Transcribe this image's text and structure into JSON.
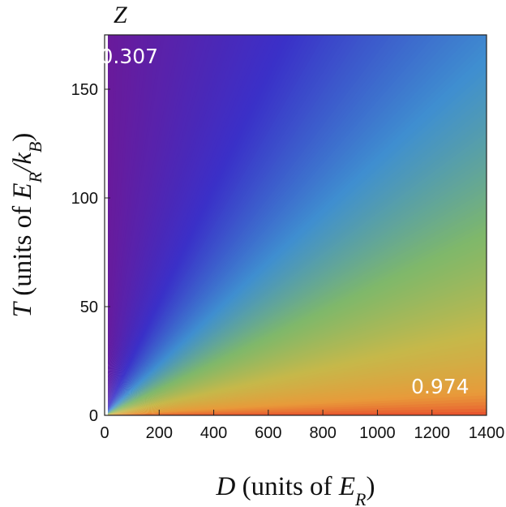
{
  "chart_data": {
    "type": "heatmap",
    "title": "Z",
    "xlabel": {
      "var": "D",
      "text": " (units of ",
      "unit_base": "E",
      "unit_sub": "R",
      "close": ")"
    },
    "ylabel": {
      "var": "T",
      "text": " (units of ",
      "unit_base": "E",
      "unit_sub": "R",
      "unit_slash": "/k",
      "unit_sub2": "B",
      "close": ")"
    },
    "xlim": [
      0,
      1400
    ],
    "ylim": [
      0,
      175
    ],
    "x_ticks": [
      0,
      200,
      400,
      600,
      800,
      1000,
      1200,
      1400
    ],
    "y_ticks": [
      0,
      50,
      100,
      150
    ],
    "grid": false,
    "legend": "none",
    "annotations": [
      {
        "text": "0.307",
        "at": [
          90,
          162
        ]
      },
      {
        "text": "0.974",
        "at": [
          1230,
          10
        ]
      }
    ],
    "z_range": [
      0.307,
      0.974
    ],
    "colormap": "rainbow",
    "colormap_stops": [
      "#6a1a9a",
      "#3a30c8",
      "#3f8fd0",
      "#7fb86a",
      "#c6b84a",
      "#e89a3a",
      "#e83a2a"
    ],
    "description_of_field": "Z is lowest at high T / low D and highest at low T / high D; contours are lines through origin."
  }
}
